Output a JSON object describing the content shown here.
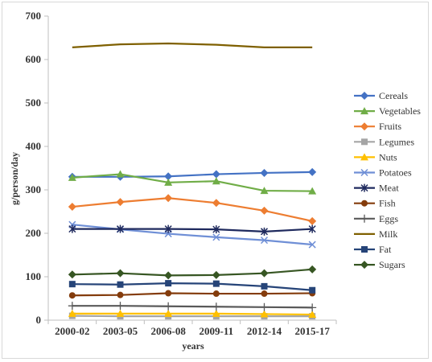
{
  "chart_data": {
    "type": "line",
    "title": "",
    "xlabel": "years",
    "ylabel": "g/person/day",
    "categories": [
      "2000-02",
      "2003-05",
      "2006-08",
      "2009-11",
      "2012-14",
      "2015-17"
    ],
    "ylim": [
      0,
      700
    ],
    "yticks": [
      0,
      100,
      200,
      300,
      400,
      500,
      600,
      700
    ],
    "grid": false,
    "legend_position": "right",
    "series": [
      {
        "name": "Cereals",
        "color": "#4472c4",
        "marker": "diamond",
        "values": [
          330,
          330,
          331,
          336,
          339,
          341
        ]
      },
      {
        "name": "Vegetables",
        "color": "#70ad47",
        "marker": "triangle",
        "values": [
          328,
          336,
          317,
          320,
          298,
          297
        ]
      },
      {
        "name": "Fruits",
        "color": "#ed7d31",
        "marker": "diamond",
        "values": [
          261,
          272,
          281,
          270,
          252,
          228
        ]
      },
      {
        "name": "Legumes",
        "color": "#a5a5a5",
        "marker": "square",
        "values": [
          10,
          9,
          9,
          9,
          9,
          9
        ]
      },
      {
        "name": "Nuts",
        "color": "#ffc000",
        "marker": "triangle",
        "values": [
          15,
          15,
          15,
          15,
          14,
          13
        ]
      },
      {
        "name": "Potatoes",
        "color": "#6f8fd6",
        "marker": "x",
        "values": [
          220,
          209,
          199,
          191,
          184,
          174
        ]
      },
      {
        "name": "Meat",
        "color": "#1f2a5e",
        "marker": "star",
        "values": [
          210,
          210,
          210,
          209,
          204,
          210
        ]
      },
      {
        "name": "Fish",
        "color": "#843c0c",
        "marker": "circle",
        "values": [
          57,
          58,
          62,
          61,
          61,
          62
        ]
      },
      {
        "name": "Eggs",
        "color": "#595959",
        "marker": "plus",
        "values": [
          33,
          33,
          32,
          31,
          30,
          29
        ]
      },
      {
        "name": "Milk",
        "color": "#7f6000",
        "marker": "none",
        "values": [
          628,
          635,
          637,
          634,
          628,
          628
        ]
      },
      {
        "name": "Fat",
        "color": "#264478",
        "marker": "square",
        "values": [
          83,
          82,
          85,
          84,
          78,
          69
        ]
      },
      {
        "name": "Sugars",
        "color": "#375623",
        "marker": "diamond",
        "values": [
          105,
          108,
          103,
          104,
          108,
          117
        ]
      }
    ]
  }
}
